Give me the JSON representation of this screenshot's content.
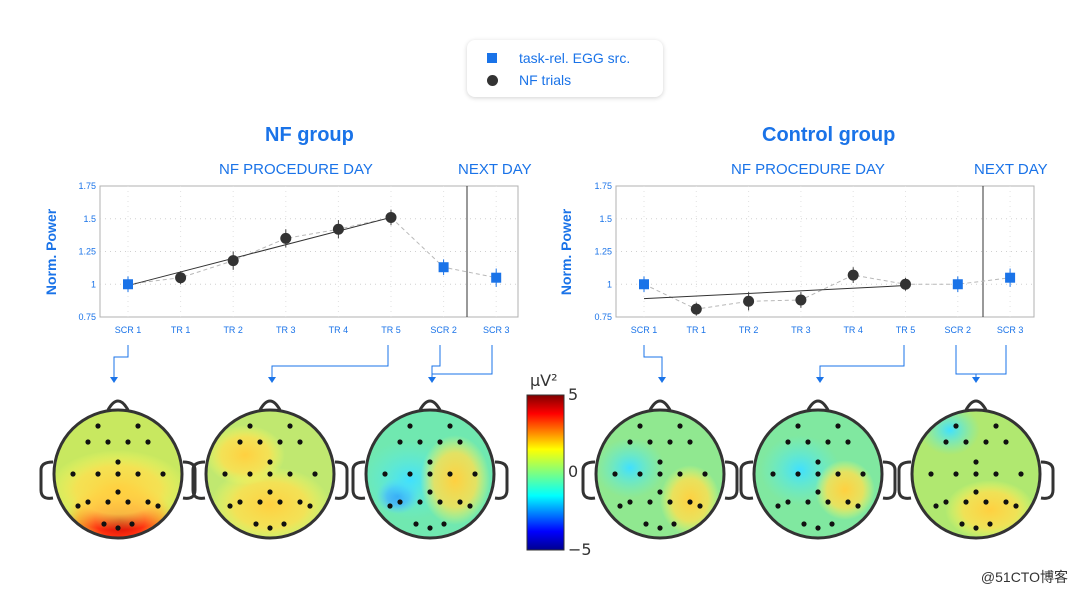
{
  "legend": {
    "item1": "task-rel. EGG src.",
    "item2": "NF trials"
  },
  "groups": [
    {
      "title": "NF group",
      "day_label": "NF PROCEDURE DAY",
      "next_label": "NEXT DAY"
    },
    {
      "title": "Control group",
      "day_label": "NF PROCEDURE DAY",
      "next_label": "NEXT DAY"
    }
  ],
  "colorbar": {
    "unit": "μV²",
    "max": "5",
    "mid": "0",
    "min": "−5"
  },
  "watermark": "@51CTO博客",
  "chart_data": [
    {
      "type": "scatter",
      "title": "NF group",
      "ylabel": "Norm. Power",
      "ylim": [
        0.75,
        1.75
      ],
      "yticks": [
        "0.75",
        "1",
        "1.25",
        "1.5",
        "1.75"
      ],
      "categories": [
        "SCR 1",
        "TR 1",
        "TR 2",
        "TR 3",
        "TR 4",
        "TR 5",
        "SCR 2",
        "SCR 3"
      ],
      "series": [
        {
          "name": "task-rel. EGG src.",
          "marker": "square",
          "color": "#1a73e8",
          "points": [
            {
              "x": "SCR 1",
              "y": 1.0,
              "err": 0.06
            },
            {
              "x": "SCR 2",
              "y": 1.13,
              "err": 0.06
            },
            {
              "x": "SCR 3",
              "y": 1.05,
              "err": 0.07
            }
          ]
        },
        {
          "name": "NF trials",
          "marker": "circle",
          "color": "#333333",
          "points": [
            {
              "x": "TR 1",
              "y": 1.05,
              "err": 0.05
            },
            {
              "x": "TR 2",
              "y": 1.18,
              "err": 0.07
            },
            {
              "x": "TR 3",
              "y": 1.35,
              "err": 0.07
            },
            {
              "x": "TR 4",
              "y": 1.42,
              "err": 0.07
            },
            {
              "x": "TR 5",
              "y": 1.51,
              "err": 0.06
            }
          ]
        }
      ],
      "trend": {
        "from": [
          "SCR 1",
          0.99
        ],
        "to": [
          "TR 5",
          1.51
        ]
      },
      "divider_after": "SCR 2"
    },
    {
      "type": "scatter",
      "title": "Control group",
      "ylabel": "Norm. Power",
      "ylim": [
        0.75,
        1.75
      ],
      "yticks": [
        "0.75",
        "1",
        "1.25",
        "1.5",
        "1.75"
      ],
      "categories": [
        "SCR 1",
        "TR 1",
        "TR 2",
        "TR 3",
        "TR 4",
        "TR 5",
        "SCR 2",
        "SCR 3"
      ],
      "series": [
        {
          "name": "task-rel. EGG src.",
          "marker": "square",
          "color": "#1a73e8",
          "points": [
            {
              "x": "SCR 1",
              "y": 1.0,
              "err": 0.06
            },
            {
              "x": "SCR 2",
              "y": 1.0,
              "err": 0.06
            },
            {
              "x": "SCR 3",
              "y": 1.05,
              "err": 0.07
            }
          ]
        },
        {
          "name": "NF trials",
          "marker": "circle",
          "color": "#333333",
          "points": [
            {
              "x": "TR 1",
              "y": 0.81,
              "err": 0.05
            },
            {
              "x": "TR 2",
              "y": 0.87,
              "err": 0.07
            },
            {
              "x": "TR 3",
              "y": 0.88,
              "err": 0.06
            },
            {
              "x": "TR 4",
              "y": 1.07,
              "err": 0.06
            },
            {
              "x": "TR 5",
              "y": 1.0,
              "err": 0.05
            }
          ]
        }
      ],
      "trend": {
        "from": [
          "SCR 1",
          0.89
        ],
        "to": [
          "TR 5",
          0.99
        ]
      },
      "divider_after": "SCR 2"
    }
  ]
}
